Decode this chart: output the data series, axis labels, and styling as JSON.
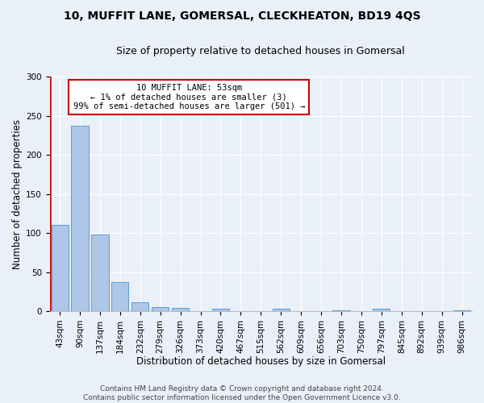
{
  "title_line1": "10, MUFFIT LANE, GOMERSAL, CLECKHEATON, BD19 4QS",
  "title_line2": "Size of property relative to detached houses in Gomersal",
  "xlabel": "Distribution of detached houses by size in Gomersal",
  "ylabel": "Number of detached properties",
  "categories": [
    "43sqm",
    "90sqm",
    "137sqm",
    "184sqm",
    "232sqm",
    "279sqm",
    "326sqm",
    "373sqm",
    "420sqm",
    "467sqm",
    "515sqm",
    "562sqm",
    "609sqm",
    "656sqm",
    "703sqm",
    "750sqm",
    "797sqm",
    "845sqm",
    "892sqm",
    "939sqm",
    "986sqm"
  ],
  "values": [
    110,
    237,
    98,
    37,
    11,
    5,
    4,
    0,
    3,
    0,
    0,
    3,
    0,
    0,
    1,
    0,
    3,
    0,
    0,
    0,
    1
  ],
  "bar_color": "#aec6e8",
  "bar_edge_color": "#5b9bd5",
  "annotation_text": "10 MUFFIT LANE: 53sqm\n← 1% of detached houses are smaller (3)\n99% of semi-detached houses are larger (501) →",
  "annotation_box_edge_color": "#cc0000",
  "annotation_box_face_color": "#ffffff",
  "red_line_color": "#cc0000",
  "ylim": [
    0,
    300
  ],
  "yticks": [
    0,
    50,
    100,
    150,
    200,
    250,
    300
  ],
  "background_color": "#eaf0f8",
  "plot_background_color": "#eaf0f8",
  "footer_line1": "Contains HM Land Registry data © Crown copyright and database right 2024.",
  "footer_line2": "Contains public sector information licensed under the Open Government Licence v3.0.",
  "title_fontsize": 10,
  "subtitle_fontsize": 9,
  "xlabel_fontsize": 8.5,
  "ylabel_fontsize": 8.5,
  "tick_fontsize": 7.5,
  "footer_fontsize": 6.5
}
